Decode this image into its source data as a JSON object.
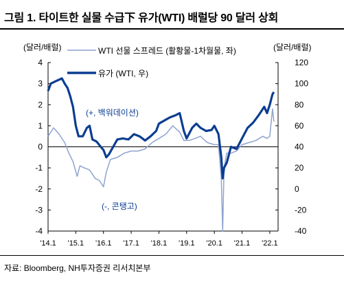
{
  "figure_title": "그림 1. 타이트한 실물 수급下 유가(WTI) 배럴당 90 달러 상회",
  "source": "자료: Bloomberg, NH투자증권 리서치본부",
  "chart_data": {
    "type": "line",
    "left_axis": {
      "unit": "(달러/배럴)",
      "ticks": [
        "4",
        "3",
        "2",
        "1",
        "0",
        "-1",
        "-2",
        "-3",
        "-4"
      ],
      "range": [
        -4,
        4
      ]
    },
    "right_axis": {
      "unit": "(달러/배럴)",
      "ticks": [
        "120",
        "100",
        "80",
        "60",
        "40",
        "20",
        "0",
        "-20",
        "-40"
      ],
      "range": [
        -40,
        120
      ]
    },
    "x_tick_labels": [
      "'14.1",
      "'15.1",
      "'16.1",
      "'17.1",
      "'18.1",
      "'19.1",
      "'20.1",
      "'21.1",
      "'22.1"
    ],
    "annotations": [
      "(+, 백워데이션)",
      "(-, 콘탱고)"
    ],
    "colors": {
      "price": "#0b3d91",
      "spread": "#8ea2cf"
    },
    "series": [
      {
        "name": "WTI 선물 스프레드 (활황물-1차월물, 좌)",
        "axis": "left",
        "x": [
          2014.0,
          2014.2,
          2014.4,
          2014.6,
          2014.75,
          2014.9,
          2015.05,
          2015.15,
          2015.3,
          2015.5,
          2015.7,
          2015.85,
          2016.0,
          2016.1,
          2016.25,
          2016.5,
          2016.75,
          2017.0,
          2017.25,
          2017.5,
          2017.75,
          2018.0,
          2018.25,
          2018.5,
          2018.75,
          2018.9,
          2019.1,
          2019.3,
          2019.5,
          2019.75,
          2020.0,
          2020.15,
          2020.25,
          2020.3,
          2020.35,
          2020.45,
          2020.6,
          2020.8,
          2021.0,
          2021.25,
          2021.5,
          2021.75,
          2021.9,
          2022.0,
          2022.1,
          2022.15
        ],
        "values": [
          0.5,
          0.9,
          0.6,
          0.2,
          -0.3,
          -0.7,
          -1.4,
          -0.9,
          -1.0,
          -1.1,
          -1.5,
          -1.6,
          -1.9,
          -1.2,
          -0.6,
          -0.5,
          -0.3,
          -0.2,
          -0.2,
          -0.1,
          0.2,
          0.4,
          0.6,
          1.0,
          0.7,
          0.3,
          0.3,
          0.4,
          0.5,
          0.2,
          0.1,
          0.1,
          -1.5,
          -4.0,
          -1.0,
          -0.3,
          -0.3,
          -0.2,
          0.1,
          0.2,
          0.3,
          0.5,
          0.4,
          0.5,
          1.8,
          1.2
        ]
      },
      {
        "name": "유가 (WTI, 우)",
        "axis": "right",
        "x": [
          2014.0,
          2014.1,
          2014.25,
          2014.5,
          2014.6,
          2014.7,
          2014.8,
          2014.9,
          2015.0,
          2015.1,
          2015.25,
          2015.4,
          2015.5,
          2015.6,
          2015.75,
          2015.9,
          2016.0,
          2016.1,
          2016.2,
          2016.35,
          2016.5,
          2016.7,
          2016.9,
          2017.1,
          2017.3,
          2017.5,
          2017.7,
          2017.9,
          2018.0,
          2018.2,
          2018.4,
          2018.6,
          2018.75,
          2018.9,
          2019.0,
          2019.2,
          2019.35,
          2019.5,
          2019.7,
          2019.9,
          2020.0,
          2020.15,
          2020.25,
          2020.3,
          2020.35,
          2020.45,
          2020.6,
          2020.8,
          2021.0,
          2021.2,
          2021.4,
          2021.6,
          2021.8,
          2021.9,
          2022.0,
          2022.1,
          2022.15
        ],
        "values": [
          93,
          100,
          102,
          105,
          100,
          96,
          88,
          78,
          60,
          50,
          50,
          58,
          60,
          47,
          45,
          40,
          37,
          30,
          33,
          40,
          47,
          48,
          47,
          52,
          50,
          46,
          50,
          55,
          62,
          65,
          68,
          70,
          72,
          55,
          48,
          58,
          62,
          58,
          55,
          56,
          60,
          52,
          30,
          10,
          20,
          25,
          40,
          38,
          48,
          58,
          63,
          70,
          78,
          72,
          80,
          90,
          92
        ]
      }
    ]
  }
}
